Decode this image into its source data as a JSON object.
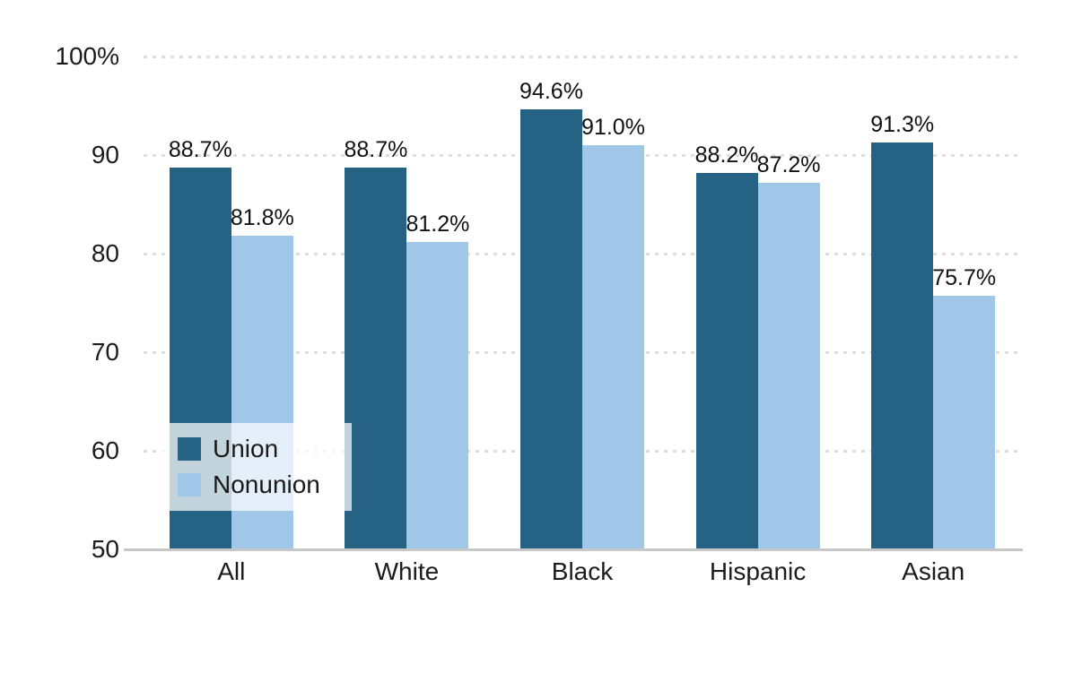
{
  "chart_data": {
    "type": "bar",
    "title": "",
    "categories": [
      "All",
      "White",
      "Black",
      "Hispanic",
      "Asian"
    ],
    "series": [
      {
        "name": "Union",
        "color": "#256283",
        "values": [
          88.7,
          88.7,
          94.6,
          88.2,
          91.3
        ],
        "labels": [
          "88.7%",
          "88.7%",
          "94.6%",
          "88.2%",
          "91.3%"
        ]
      },
      {
        "name": "Nonunion",
        "color": "#A0C7E8",
        "values": [
          81.8,
          81.2,
          91.0,
          87.2,
          75.7
        ],
        "labels": [
          "81.8%",
          "81.2%",
          "91.0%",
          "87.2%",
          "75.7%"
        ]
      }
    ],
    "xlabel": "",
    "ylabel": "",
    "y_axis": {
      "min": 50,
      "max": 100,
      "tick_values": [
        100,
        90,
        80,
        70,
        60,
        50
      ],
      "tick_labels": [
        "100%",
        "90",
        "80",
        "70",
        "60",
        "50"
      ]
    },
    "grid": "horizontal dotted lines at each tick, solid gray baseline at 50",
    "legend_position": "inside lower-left, translucent white box",
    "colors": {
      "union_bar": "#256283",
      "nonunion_bar": "#A0C7E8",
      "gridline": "#dedede",
      "axis_line": "#c7c7c7",
      "text": "#1c1c1c"
    }
  },
  "legend": {
    "items": [
      {
        "label": "Union",
        "color": "#256283"
      },
      {
        "label": "Nonunion",
        "color": "#A0C7E8"
      }
    ]
  }
}
